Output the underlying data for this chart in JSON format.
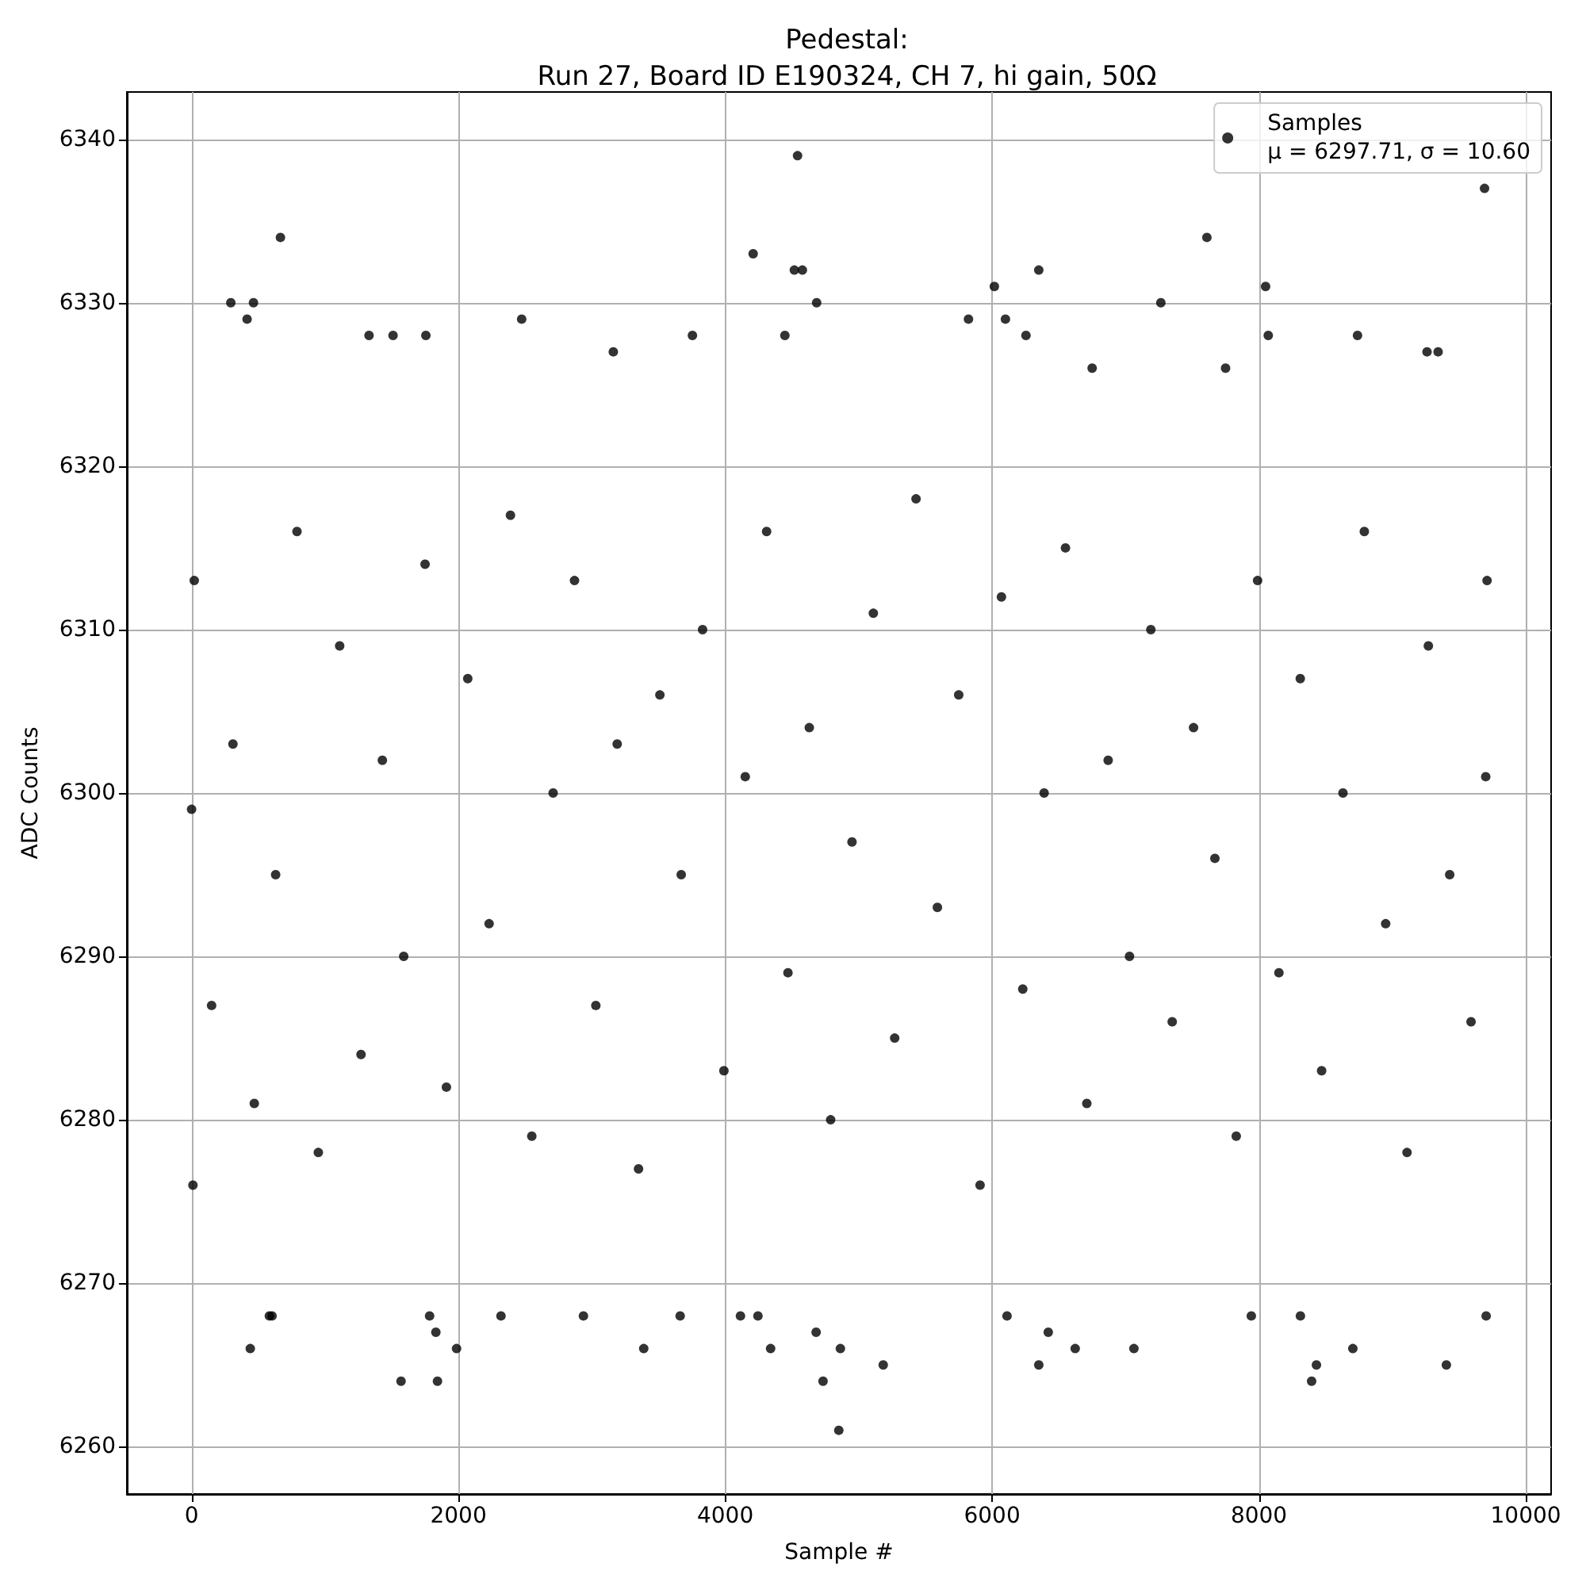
{
  "chart_data": {
    "type": "scatter",
    "title": "Pedestal:\nRun 27, Board ID E190324, CH 7, hi gain, 50Ω",
    "xlabel": "Sample #",
    "ylabel": "ADC Counts",
    "series": [
      {
        "name": "Samples\nμ = 6297.71, σ = 10.60",
        "color": "#000000",
        "x": [
          0,
          10,
          20,
          150,
          294,
          310,
          416,
          440,
          464,
          470,
          583,
          603,
          630,
          666,
          790,
          950,
          1110,
          1270,
          1330,
          1430,
          1510,
          1570,
          1590,
          1750,
          1756,
          1784,
          1831,
          1843,
          1910,
          1986,
          2070,
          2230,
          2319,
          2390,
          2474,
          2550,
          2710,
          2870,
          2937,
          3030,
          3161,
          3190,
          3350,
          3389,
          3510,
          3662,
          3670,
          3754,
          3830,
          3990,
          4114,
          4150,
          4209,
          4245,
          4310,
          4340,
          4447,
          4470,
          4518,
          4542,
          4578,
          4630,
          4681,
          4685,
          4733,
          4790,
          4851,
          4863,
          4950,
          5110,
          5184,
          5270,
          5430,
          5590,
          5750,
          5823,
          5910,
          6017,
          6070,
          6100,
          6112,
          6230,
          6254,
          6350,
          6350,
          6390,
          6421,
          6550,
          6623,
          6710,
          6750,
          6870,
          7030,
          7063,
          7190,
          7265,
          7350,
          7510,
          7610,
          7670,
          7750,
          7830,
          7943,
          7990,
          8050,
          8070,
          8150,
          8310,
          8311,
          8395,
          8431,
          8470,
          8630,
          8704,
          8739,
          8790,
          8950,
          9110,
          9260,
          9270,
          9343,
          9405,
          9430,
          9590,
          9691,
          9700,
          9703,
          9710
        ],
        "values": [
          6299,
          6276,
          6313,
          6287,
          6330,
          6303,
          6329,
          6266,
          6330,
          6281,
          6268,
          6268,
          6295,
          6334,
          6316,
          6278,
          6309,
          6284,
          6328,
          6302,
          6328,
          6264,
          6290,
          6314,
          6328,
          6268,
          6267,
          6264,
          6282,
          6266,
          6307,
          6292,
          6268,
          6317,
          6329,
          6279,
          6300,
          6313,
          6268,
          6287,
          6327,
          6303,
          6277,
          6266,
          6306,
          6268,
          6295,
          6328,
          6310,
          6283,
          6268,
          6301,
          6333,
          6268,
          6316,
          6266,
          6328,
          6289,
          6332,
          6339,
          6332,
          6304,
          6267,
          6330,
          6264,
          6280,
          6261,
          6266,
          6297,
          6311,
          6265,
          6285,
          6318,
          6293,
          6306,
          6329,
          6276,
          6331,
          6312,
          6329,
          6268,
          6288,
          6328,
          6332,
          6265,
          6300,
          6267,
          6315,
          6266,
          6281,
          6326,
          6302,
          6290,
          6266,
          6310,
          6330,
          6286,
          6304,
          6334,
          6296,
          6326,
          6279,
          6268,
          6313,
          6331,
          6328,
          6289,
          6307,
          6268,
          6264,
          6265,
          6283,
          6300,
          6266,
          6328,
          6316,
          6292,
          6278,
          6327,
          6309,
          6327,
          6265,
          6295,
          6286,
          6337,
          6301,
          6268,
          6313
        ]
      }
    ],
    "xlim": [
      -485,
      10190
    ],
    "ylim": [
      6257.1,
      6342.9
    ],
    "xticks": [
      0,
      2000,
      4000,
      6000,
      8000,
      10000
    ],
    "yticks": [
      6260,
      6270,
      6280,
      6290,
      6300,
      6310,
      6320,
      6330,
      6340
    ],
    "marker": "circle",
    "grid": true,
    "legend": "top right"
  }
}
